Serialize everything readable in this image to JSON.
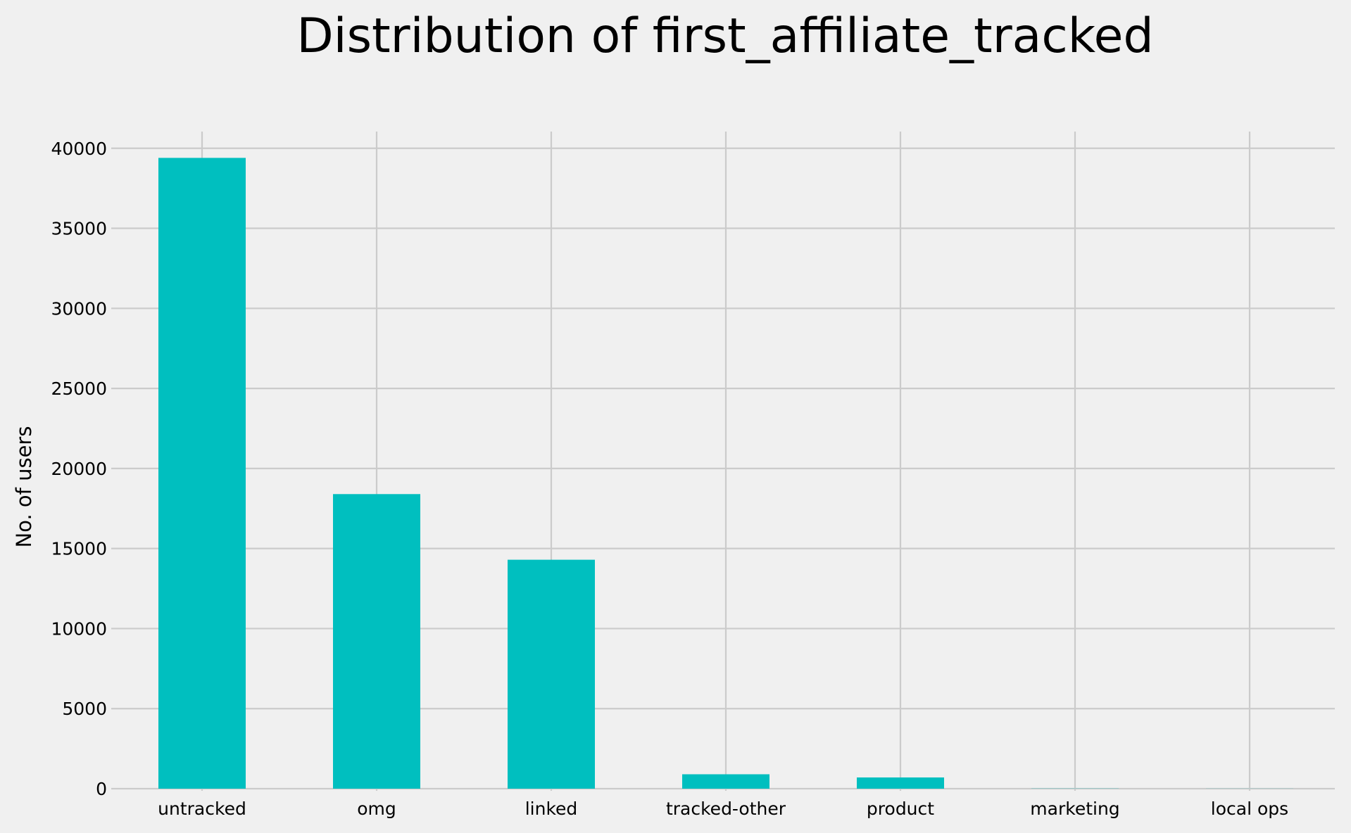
{
  "chart_data": {
    "type": "bar",
    "title": "Distribution of first_affiliate_tracked",
    "xlabel": "",
    "ylabel": "No. of users",
    "categories": [
      "untracked",
      "omg",
      "linked",
      "tracked-other",
      "product",
      "marketing",
      "local ops"
    ],
    "values": [
      39400,
      18400,
      14300,
      900,
      700,
      10,
      5
    ],
    "ylim": [
      0,
      41000
    ],
    "yticks": [
      0,
      5000,
      10000,
      15000,
      20000,
      25000,
      30000,
      35000,
      40000
    ],
    "ytick_labels": [
      "0",
      "5000",
      "10000",
      "15000",
      "20000",
      "25000",
      "30000",
      "35000",
      "40000"
    ],
    "grid": true,
    "colors": {
      "bar": "#00bfbf",
      "grid": "#cbcbcb",
      "background": "#f0f0f0"
    }
  }
}
